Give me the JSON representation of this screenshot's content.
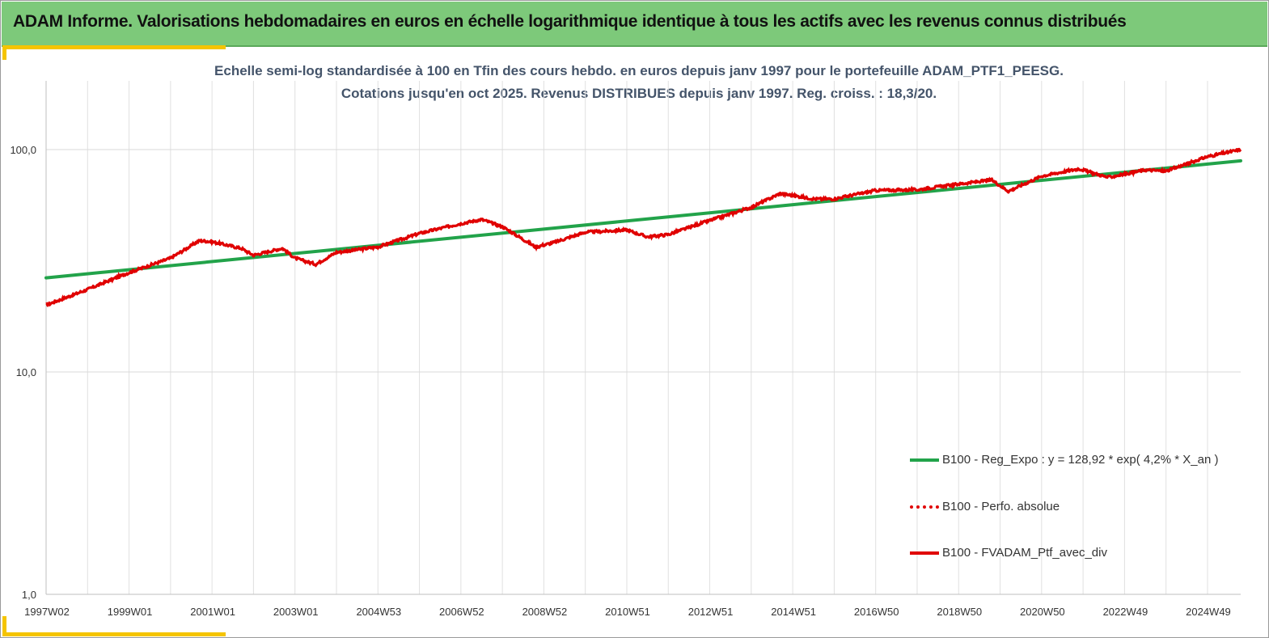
{
  "banner": {
    "title": "ADAM Informe. Valorisations hebdomadaires en euros en échelle logarithmique identique à tous les actifs avec les revenus connus distribués"
  },
  "chart_data": {
    "type": "line",
    "title": "Echelle semi-log standardisée  à 100 en Tfin des cours hebdo.  en euros depuis janv 1997 pour le portefeuille ADAM_PTF1_PEESG.",
    "subtitle": "Cotations jusqu'en oct 2025. Revenus DISTRIBUES depuis janv 1997. Reg. croiss. : 18,3/20.",
    "yscale": "log",
    "ylim": [
      1,
      200
    ],
    "xlim": [
      1997.0,
      2025.8
    ],
    "ytick_values": [
      1,
      10,
      100
    ],
    "ytick_labels": [
      "1,0",
      "10,0",
      "100,0"
    ],
    "xtick_values": [
      1997.0,
      1999.0,
      2001.0,
      2003.0,
      2005.0,
      2007.0,
      2009.0,
      2011.0,
      2013.0,
      2015.0,
      2017.0,
      2019.0,
      2021.0,
      2023.0,
      2025.0
    ],
    "xtick_labels": [
      "1997W02",
      "1999W01",
      "2001W01",
      "2003W01",
      "2004W53",
      "2006W52",
      "2008W52",
      "2010W51",
      "2012W51",
      "2014W51",
      "2016W50",
      "2018W50",
      "2020W50",
      "2022W49",
      "2024W49"
    ],
    "grid_x": true,
    "grid_y": true,
    "legend_position": "bottom-right",
    "series": [
      {
        "name": "B100 - Reg_Expo : y = 128,92 * exp( 4,2% *  X_an )",
        "style": "solid",
        "color": "#22a34a",
        "x": [
          1997.0,
          2025.8
        ],
        "y": [
          26.5,
          89.0
        ]
      },
      {
        "name": "B100 - Perfo. absolue",
        "style": "dotted",
        "color": "#e00000",
        "x": [
          1997.0,
          1998.0,
          1999.0,
          2000.0,
          2000.7,
          2001.0,
          2001.7,
          2002.0,
          2002.7,
          2003.0,
          2003.5,
          2004.0,
          2005.0,
          2006.0,
          2007.0,
          2007.5,
          2008.0,
          2008.8,
          2009.2,
          2010.0,
          2011.0,
          2011.5,
          2012.0,
          2013.0,
          2014.0,
          2014.7,
          2015.5,
          2016.0,
          2017.0,
          2018.0,
          2019.0,
          2019.8,
          2020.2,
          2021.0,
          2021.9,
          2022.6,
          2023.5,
          2024.0,
          2025.0,
          2025.8
        ],
        "y": [
          20.0,
          23.5,
          28.0,
          32.5,
          39.0,
          38.5,
          36.0,
          33.5,
          36.0,
          32.5,
          30.5,
          34.5,
          36.5,
          42.0,
          46.5,
          48.5,
          45.0,
          36.5,
          38.0,
          42.5,
          43.5,
          40.5,
          41.5,
          48.0,
          55.0,
          63.5,
          60.0,
          60.0,
          65.5,
          66.0,
          70.0,
          73.0,
          65.0,
          76.0,
          82.0,
          75.0,
          81.0,
          80.0,
          93.0,
          100.0
        ]
      },
      {
        "name": "B100 - FVADAM_Ptf_avec_div",
        "style": "solid",
        "color": "#e00000",
        "x": [
          1997.0,
          1998.0,
          1999.0,
          2000.0,
          2000.7,
          2001.0,
          2001.7,
          2002.0,
          2002.7,
          2003.0,
          2003.5,
          2004.0,
          2005.0,
          2006.0,
          2007.0,
          2007.5,
          2008.0,
          2008.8,
          2009.2,
          2010.0,
          2011.0,
          2011.5,
          2012.0,
          2013.0,
          2014.0,
          2014.7,
          2015.5,
          2016.0,
          2017.0,
          2018.0,
          2019.0,
          2019.8,
          2020.2,
          2021.0,
          2021.9,
          2022.6,
          2023.5,
          2024.0,
          2025.0,
          2025.8
        ],
        "y": [
          20.0,
          23.5,
          28.0,
          32.5,
          39.0,
          38.5,
          36.0,
          33.5,
          36.0,
          32.5,
          30.5,
          34.5,
          36.5,
          42.0,
          46.5,
          48.5,
          45.0,
          36.5,
          38.0,
          42.5,
          43.5,
          40.5,
          41.5,
          48.0,
          55.0,
          63.5,
          60.0,
          60.0,
          65.5,
          66.0,
          70.0,
          73.0,
          65.0,
          76.0,
          82.0,
          75.0,
          81.0,
          80.0,
          93.0,
          100.0
        ]
      }
    ]
  }
}
